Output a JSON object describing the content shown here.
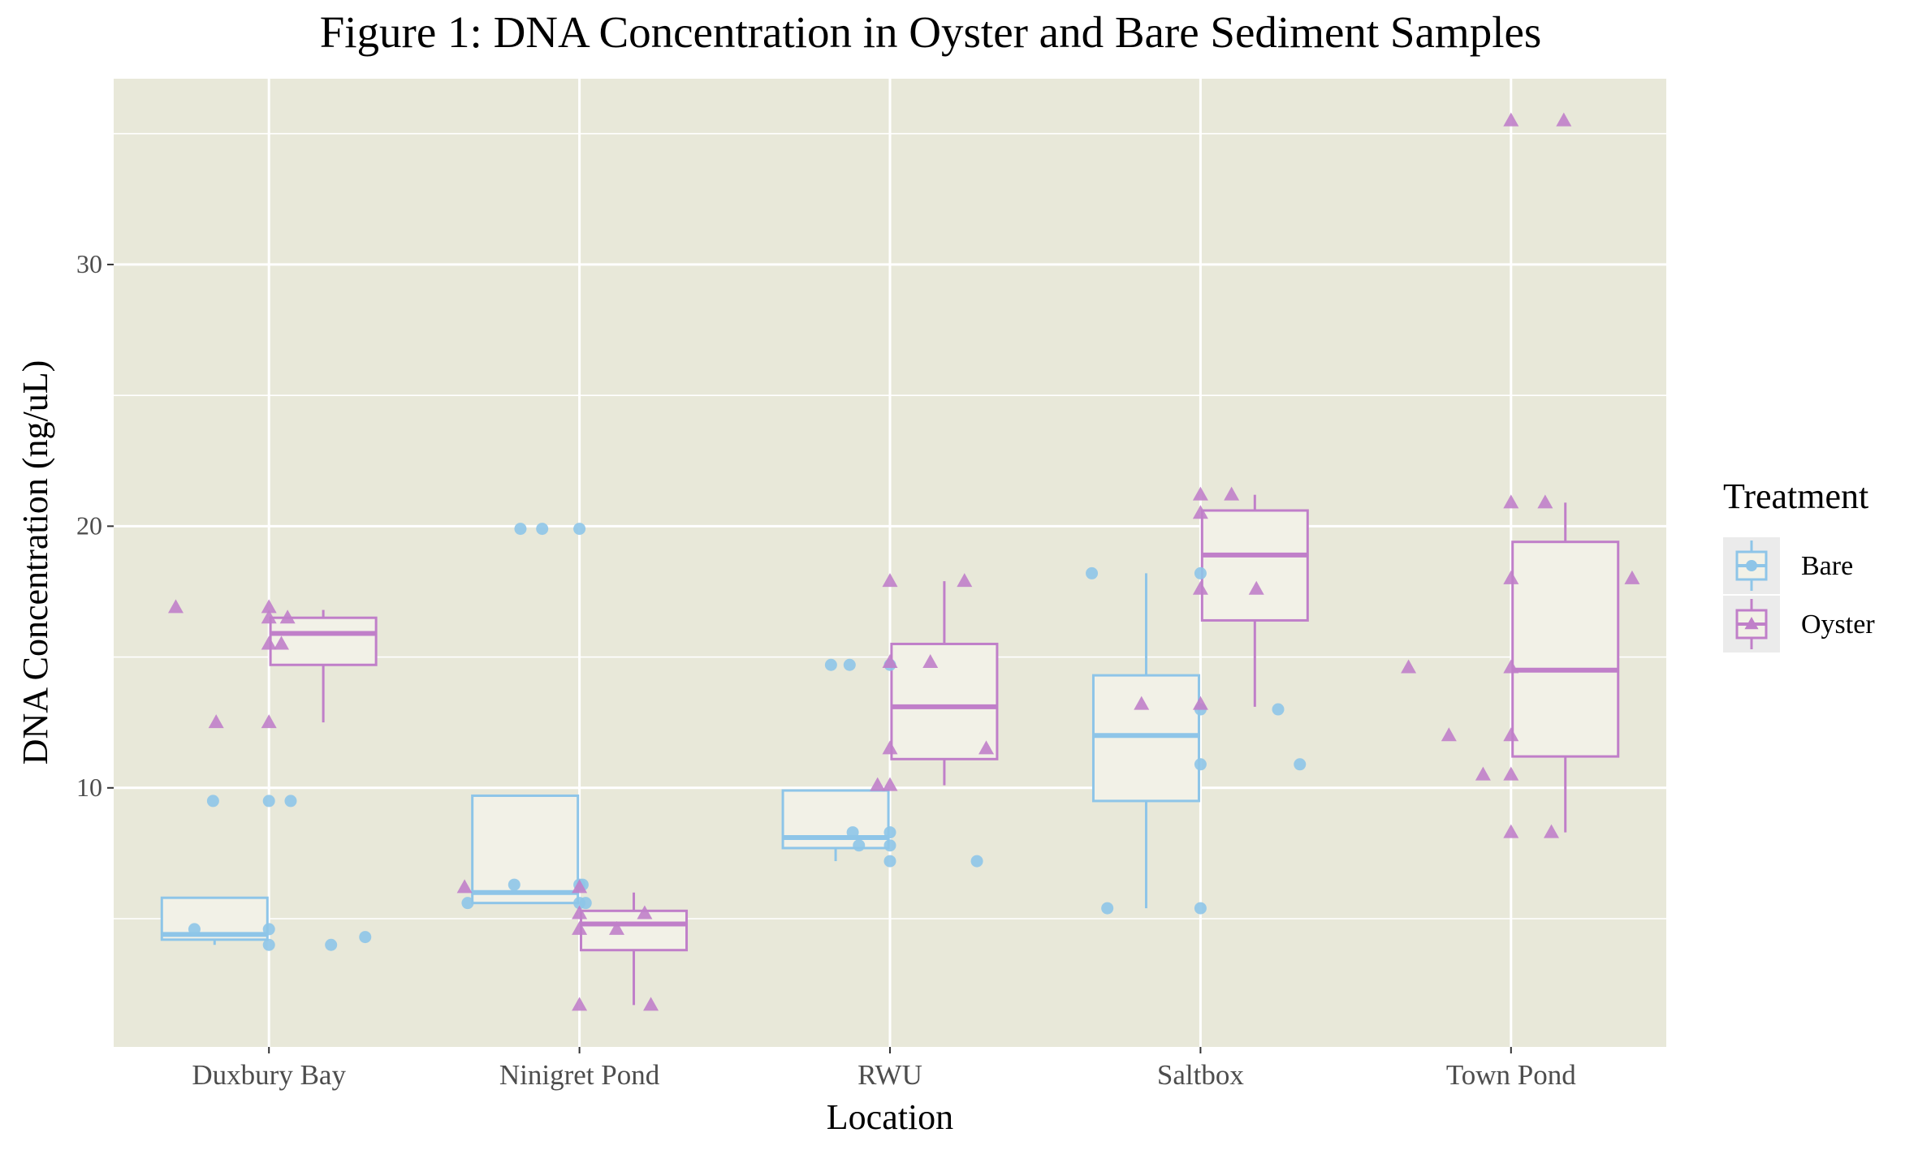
{
  "chart_data": {
    "type": "box",
    "title": "Figure 1: DNA Concentration in Oyster and Bare Sediment Samples",
    "xlabel": "Location",
    "ylabel": "DNA Concentration (ng/uL)",
    "categories": [
      "Duxbury Bay",
      "Ninigret Pond",
      "RWU",
      "Saltbox",
      "Town Pond"
    ],
    "ylim": [
      0.1,
      37.1
    ],
    "yticks": [
      10,
      20,
      30
    ],
    "grid": true,
    "legend": {
      "title": "Treatment",
      "position": "right",
      "entries": [
        "Bare",
        "Oyster"
      ]
    },
    "colors": {
      "Bare": "#8ec5e8",
      "Oyster": "#c07fc9",
      "panel_bg": "#e8e8d9",
      "box_fill": "#f2f1e7",
      "grid": "#ffffff",
      "legend_key_bg": "#ebebeb"
    },
    "series": [
      {
        "name": "Bare",
        "marker": "circle",
        "boxes": [
          {
            "q1": 4.2,
            "median": 4.4,
            "q3": 5.8,
            "lower": 4.0,
            "upper": 5.8
          },
          {
            "q1": 5.6,
            "median": 6.0,
            "q3": 9.7,
            "lower": 5.6,
            "upper": 9.7
          },
          {
            "q1": 7.7,
            "median": 8.1,
            "q3": 9.9,
            "lower": 7.2,
            "upper": 9.9
          },
          {
            "q1": 9.5,
            "median": 12.0,
            "q3": 14.3,
            "lower": 5.4,
            "upper": 18.2
          },
          {
            "q1": null,
            "median": null,
            "q3": null,
            "lower": null,
            "upper": null
          }
        ],
        "points": [
          {
            "x": 0,
            "y": 9.5,
            "off": -0.18
          },
          {
            "x": 0,
            "y": 9.5,
            "off": 0.0
          },
          {
            "x": 0,
            "y": 9.5,
            "off": 0.07
          },
          {
            "x": 0,
            "y": 4.6,
            "off": -0.24
          },
          {
            "x": 0,
            "y": 4.6,
            "off": 0.0
          },
          {
            "x": 0,
            "y": 4.0,
            "off": 0.0
          },
          {
            "x": 0,
            "y": 4.0,
            "off": 0.2
          },
          {
            "x": 0,
            "y": 4.3,
            "off": 0.31
          },
          {
            "x": 1,
            "y": 19.9,
            "off": -0.19
          },
          {
            "x": 1,
            "y": 19.9,
            "off": -0.12
          },
          {
            "x": 1,
            "y": 19.9,
            "off": 0.0
          },
          {
            "x": 1,
            "y": 6.3,
            "off": -0.21
          },
          {
            "x": 1,
            "y": 6.3,
            "off": 0.0
          },
          {
            "x": 1,
            "y": 6.3,
            "off": 0.01
          },
          {
            "x": 1,
            "y": 5.6,
            "off": -0.36
          },
          {
            "x": 1,
            "y": 5.6,
            "off": 0.0
          },
          {
            "x": 1,
            "y": 5.6,
            "off": 0.02
          },
          {
            "x": 2,
            "y": 14.7,
            "off": -0.19
          },
          {
            "x": 2,
            "y": 14.7,
            "off": -0.13
          },
          {
            "x": 2,
            "y": 14.7,
            "off": 0.0
          },
          {
            "x": 2,
            "y": 8.3,
            "off": -0.12
          },
          {
            "x": 2,
            "y": 8.3,
            "off": 0.0
          },
          {
            "x": 2,
            "y": 7.8,
            "off": -0.1
          },
          {
            "x": 2,
            "y": 7.8,
            "off": 0.0
          },
          {
            "x": 2,
            "y": 7.2,
            "off": 0.0
          },
          {
            "x": 2,
            "y": 7.2,
            "off": 0.28
          },
          {
            "x": 3,
            "y": 18.2,
            "off": -0.35
          },
          {
            "x": 3,
            "y": 18.2,
            "off": 0.0
          },
          {
            "x": 3,
            "y": 13.0,
            "off": 0.0
          },
          {
            "x": 3,
            "y": 13.0,
            "off": 0.25
          },
          {
            "x": 3,
            "y": 10.9,
            "off": 0.0
          },
          {
            "x": 3,
            "y": 10.9,
            "off": 0.32
          },
          {
            "x": 3,
            "y": 5.4,
            "off": -0.3
          },
          {
            "x": 3,
            "y": 5.4,
            "off": 0.0
          }
        ]
      },
      {
        "name": "Oyster",
        "marker": "triangle",
        "boxes": [
          {
            "q1": 14.7,
            "median": 15.9,
            "q3": 16.5,
            "lower": 12.5,
            "upper": 16.8
          },
          {
            "q1": 3.8,
            "median": 4.8,
            "q3": 5.3,
            "lower": 1.7,
            "upper": 6.0
          },
          {
            "q1": 11.1,
            "median": 13.1,
            "q3": 15.5,
            "lower": 10.1,
            "upper": 17.9
          },
          {
            "q1": 16.4,
            "median": 18.9,
            "q3": 20.6,
            "lower": 13.1,
            "upper": 21.2
          },
          {
            "q1": 11.2,
            "median": 14.5,
            "q3": 19.4,
            "lower": 8.3,
            "upper": 20.9
          }
        ],
        "points": [
          {
            "x": 0,
            "y": 16.9,
            "off": -0.3
          },
          {
            "x": 0,
            "y": 16.9,
            "off": 0.0
          },
          {
            "x": 0,
            "y": 16.5,
            "off": 0.0
          },
          {
            "x": 0,
            "y": 16.5,
            "off": 0.06
          },
          {
            "x": 0,
            "y": 15.5,
            "off": 0.0
          },
          {
            "x": 0,
            "y": 15.5,
            "off": 0.04
          },
          {
            "x": 0,
            "y": 12.5,
            "off": -0.17
          },
          {
            "x": 0,
            "y": 12.5,
            "off": 0.0
          },
          {
            "x": 1,
            "y": 6.2,
            "off": -0.37
          },
          {
            "x": 1,
            "y": 6.2,
            "off": 0.0
          },
          {
            "x": 1,
            "y": 5.2,
            "off": 0.0
          },
          {
            "x": 1,
            "y": 5.2,
            "off": 0.21
          },
          {
            "x": 1,
            "y": 4.6,
            "off": 0.0
          },
          {
            "x": 1,
            "y": 4.6,
            "off": 0.12
          },
          {
            "x": 1,
            "y": 1.7,
            "off": 0.0
          },
          {
            "x": 1,
            "y": 1.7,
            "off": 0.23
          },
          {
            "x": 2,
            "y": 17.9,
            "off": 0.0
          },
          {
            "x": 2,
            "y": 17.9,
            "off": 0.24
          },
          {
            "x": 2,
            "y": 14.8,
            "off": 0.0
          },
          {
            "x": 2,
            "y": 14.8,
            "off": 0.13
          },
          {
            "x": 2,
            "y": 11.5,
            "off": 0.0
          },
          {
            "x": 2,
            "y": 11.5,
            "off": 0.31
          },
          {
            "x": 2,
            "y": 10.1,
            "off": -0.04
          },
          {
            "x": 2,
            "y": 10.1,
            "off": 0.0
          },
          {
            "x": 3,
            "y": 21.2,
            "off": 0.0
          },
          {
            "x": 3,
            "y": 21.2,
            "off": 0.1
          },
          {
            "x": 3,
            "y": 20.5,
            "off": 0.0
          },
          {
            "x": 3,
            "y": 17.6,
            "off": 0.0
          },
          {
            "x": 3,
            "y": 17.6,
            "off": 0.18
          },
          {
            "x": 3,
            "y": 13.2,
            "off": -0.19
          },
          {
            "x": 3,
            "y": 13.2,
            "off": 0.0
          },
          {
            "x": 4,
            "y": 35.5,
            "off": 0.0
          },
          {
            "x": 4,
            "y": 35.5,
            "off": 0.17
          },
          {
            "x": 4,
            "y": 20.9,
            "off": 0.0
          },
          {
            "x": 4,
            "y": 20.9,
            "off": 0.11
          },
          {
            "x": 4,
            "y": 18.0,
            "off": 0.0
          },
          {
            "x": 4,
            "y": 18.0,
            "off": 0.39
          },
          {
            "x": 4,
            "y": 14.6,
            "off": -0.33
          },
          {
            "x": 4,
            "y": 14.6,
            "off": 0.0
          },
          {
            "x": 4,
            "y": 12.0,
            "off": -0.2
          },
          {
            "x": 4,
            "y": 12.0,
            "off": 0.0
          },
          {
            "x": 4,
            "y": 10.5,
            "off": -0.09
          },
          {
            "x": 4,
            "y": 10.5,
            "off": 0.0
          },
          {
            "x": 4,
            "y": 8.3,
            "off": 0.0
          },
          {
            "x": 4,
            "y": 8.3,
            "off": 0.13
          }
        ]
      }
    ]
  }
}
